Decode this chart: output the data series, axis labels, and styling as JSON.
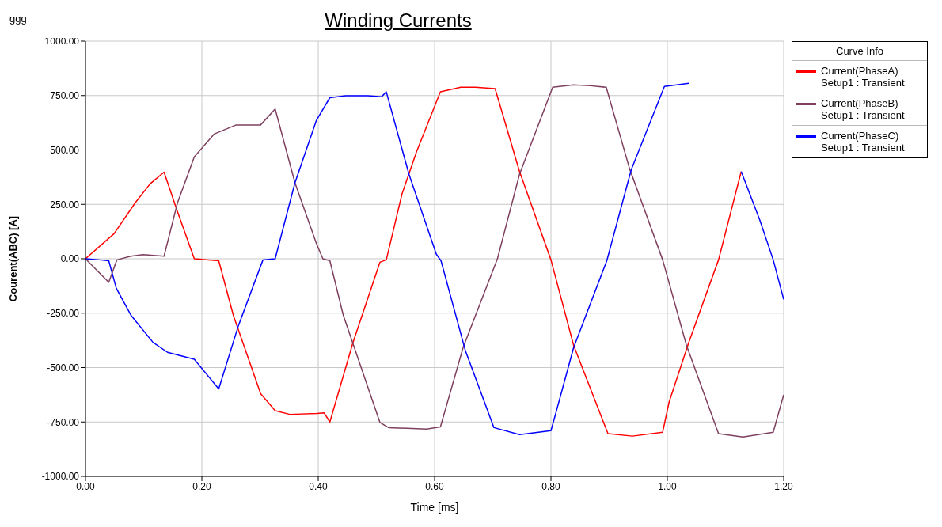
{
  "chart_data": {
    "type": "line",
    "title": "Winding Currents",
    "xlabel": "Time [ms]",
    "ylabel": "Courent(ABC) [A]",
    "legend_title": "Curve Info",
    "annotations": [
      "ggg"
    ],
    "xlim": [
      0,
      1.2
    ],
    "xticks": [
      {
        "value": 0,
        "label": "0.00"
      },
      {
        "value": 0.2,
        "label": "0.20"
      },
      {
        "value": 0.4,
        "label": "0.40"
      },
      {
        "value": 0.6,
        "label": "0.60"
      },
      {
        "value": 0.8,
        "label": "0.80"
      },
      {
        "value": 1,
        "label": "1.00"
      },
      {
        "value": 1.2,
        "label": "1.20"
      }
    ],
    "ylim": [
      -1000,
      1000
    ],
    "yticks": [
      {
        "value": -1000,
        "label": "-1000.00"
      },
      {
        "value": -750,
        "label": "-750.00"
      },
      {
        "value": -500,
        "label": "-500.00"
      },
      {
        "value": -250,
        "label": "-250.00"
      },
      {
        "value": 0,
        "label": "0.00"
      },
      {
        "value": 250,
        "label": "250.00"
      },
      {
        "value": 500,
        "label": "500.00"
      },
      {
        "value": 750,
        "label": "750.00"
      },
      {
        "value": 1000,
        "label": "1000.00"
      }
    ],
    "grid": true,
    "legend": "right",
    "marker": "none",
    "line_style": "solid",
    "series": [
      {
        "name": "Current(PhaseA)\nSetup1 : Transient",
        "color": "#ff0000",
        "x": [
          0,
          0.049,
          0.086,
          0.111,
          0.135,
          0.158,
          0.187,
          0.229,
          0.254,
          0.301,
          0.326,
          0.351,
          0.398,
          0.41,
          0.42,
          0.46,
          0.506,
          0.517,
          0.544,
          0.569,
          0.61,
          0.645,
          0.67,
          0.704,
          0.746,
          0.8,
          0.839,
          0.898,
          0.94,
          0.992,
          1.003,
          1.037,
          1.088,
          1.127
        ],
        "values": [
          0,
          115,
          259,
          344,
          398,
          217,
          0,
          -9,
          -259,
          -620,
          -698,
          -715,
          -711,
          -708,
          -750,
          -383,
          -16,
          -5,
          298,
          492,
          767,
          788,
          788,
          782,
          401,
          -5,
          -398,
          -804,
          -815,
          -797,
          -659,
          -384,
          -5,
          401
        ]
      },
      {
        "name": "Current(PhaseB)\nSetup1 : Transient",
        "color": "#7f3f5f",
        "x": [
          0,
          0.04,
          0.054,
          0.078,
          0.099,
          0.135,
          0.158,
          0.187,
          0.221,
          0.259,
          0.301,
          0.326,
          0.36,
          0.397,
          0.408,
          0.42,
          0.443,
          0.506,
          0.521,
          0.586,
          0.61,
          0.649,
          0.708,
          0.746,
          0.803,
          0.839,
          0.868,
          0.895,
          0.935,
          0.992,
          1.033,
          1.088,
          1.13,
          1.182,
          1.2
        ],
        "values": [
          0,
          -108,
          -5,
          12,
          19,
          12,
          256,
          468,
          573,
          615,
          615,
          688,
          349,
          69,
          0,
          -9,
          -259,
          -752,
          -776,
          -783,
          -773,
          -408,
          0,
          388,
          788,
          799,
          795,
          788,
          415,
          -5,
          -398,
          -804,
          -819,
          -797,
          -625
        ]
      },
      {
        "name": "Current(PhaseC)\nSetup1 : Transient",
        "color": "#0000ff",
        "x": [
          0,
          0.024,
          0.04,
          0.053,
          0.078,
          0.116,
          0.141,
          0.187,
          0.229,
          0.263,
          0.305,
          0.326,
          0.36,
          0.397,
          0.42,
          0.447,
          0.485,
          0.509,
          0.517,
          0.556,
          0.603,
          0.611,
          0.653,
          0.702,
          0.746,
          0.8,
          0.807,
          0.839,
          0.896,
          0.938,
          0.995,
          1.037,
          1.08,
          1.127,
          1.159,
          1.182,
          1.2
        ],
        "values": [
          0,
          -5,
          -9,
          -136,
          -259,
          -384,
          -430,
          -462,
          -598,
          -306,
          -5,
          0,
          349,
          637,
          740,
          749,
          749,
          745,
          767,
          388,
          21,
          -9,
          -423,
          -776,
          -808,
          -790,
          -723,
          -408,
          -9,
          409,
          792,
          806,
          null,
          401,
          177,
          -5,
          -187
        ]
      }
    ]
  }
}
